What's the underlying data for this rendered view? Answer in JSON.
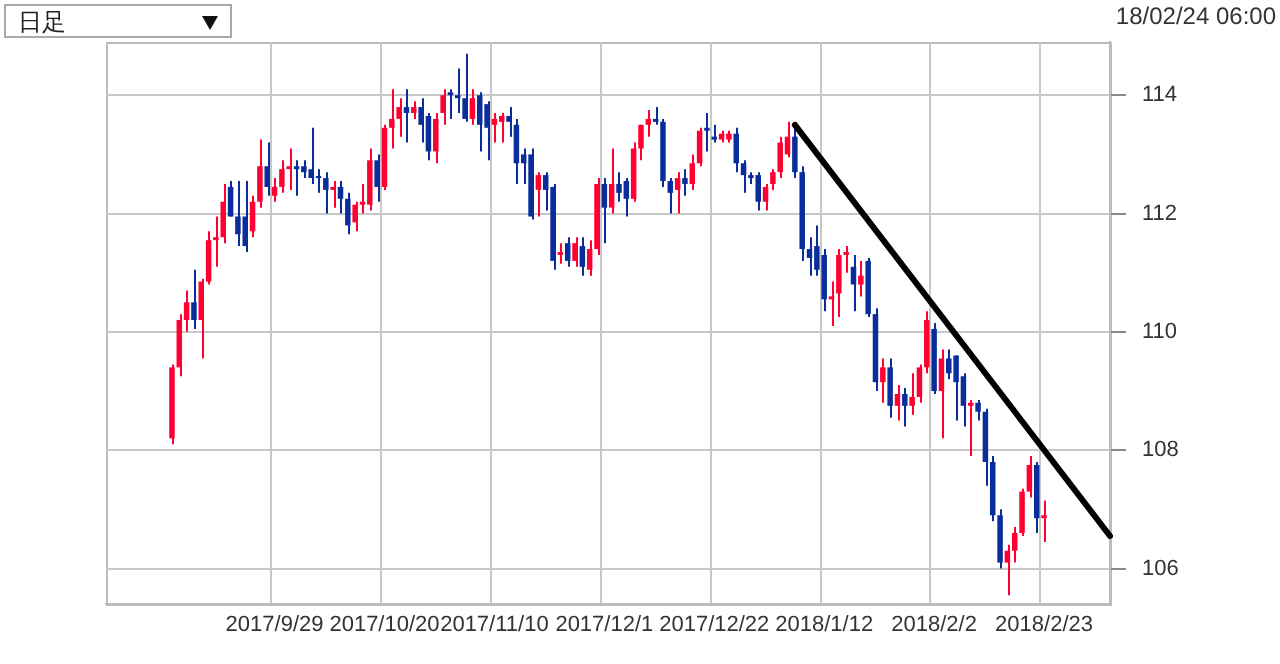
{
  "chart_data": {
    "type": "candlestick",
    "annotations": [
      "日足",
      "18/02/24 06:00"
    ],
    "categories": [
      null,
      null,
      null,
      null,
      null,
      null,
      null,
      null,
      null,
      null,
      null,
      null,
      null,
      null,
      null,
      null,
      null,
      null,
      null,
      null,
      null,
      null,
      null,
      "2017/9/29",
      null,
      null,
      null,
      null,
      null,
      null,
      null,
      null,
      null,
      null,
      null,
      null,
      null,
      null,
      "2017/10/20",
      null,
      null,
      null,
      null,
      null,
      null,
      null,
      null,
      null,
      null,
      null,
      null,
      null,
      null,
      "2017/11/10",
      null,
      null,
      null,
      null,
      null,
      null,
      null,
      null,
      null,
      null,
      null,
      null,
      null,
      null,
      "2017/12/1",
      null,
      null,
      null,
      null,
      null,
      null,
      null,
      null,
      null,
      null,
      null,
      null,
      null,
      null,
      "2017/12/22",
      null,
      null,
      null,
      null,
      null,
      null,
      null,
      null,
      null,
      null,
      null,
      null,
      null,
      null,
      "2018/1/12",
      null,
      null,
      null,
      null,
      null,
      null,
      null,
      null,
      null,
      null,
      null,
      null,
      null,
      null,
      "2018/2/2",
      null,
      null,
      null,
      null,
      null,
      null,
      null,
      null,
      null,
      null,
      null,
      null,
      null,
      null,
      "2018/2/23",
      null,
      null,
      null,
      null,
      null,
      null,
      null,
      null,
      null
    ],
    "ylim": [
      105.4,
      114.9
    ],
    "yticks": [
      106,
      108,
      110,
      112,
      114
    ],
    "grid": true,
    "series": [
      {
        "type": "candlestick",
        "ohlc": [
          null,
          null,
          null,
          null,
          null,
          null,
          null,
          null,
          null,
          [
            108.2,
            109.45,
            108.1,
            109.4
          ],
          [
            109.4,
            110.3,
            109.25,
            110.2
          ],
          [
            110.2,
            110.7,
            110.0,
            110.5
          ],
          [
            110.5,
            111.05,
            110.05,
            110.2
          ],
          [
            110.2,
            110.9,
            109.55,
            110.85
          ],
          [
            110.85,
            111.7,
            110.8,
            111.55
          ],
          [
            111.55,
            111.95,
            111.1,
            111.6
          ],
          [
            111.6,
            112.5,
            111.5,
            112.2
          ],
          [
            112.45,
            112.55,
            111.95,
            111.95
          ],
          [
            111.95,
            112.55,
            111.45,
            111.65
          ],
          [
            111.95,
            112.55,
            111.35,
            111.45
          ],
          [
            111.7,
            112.3,
            111.6,
            112.2
          ],
          [
            112.2,
            113.25,
            112.1,
            112.8
          ],
          [
            112.8,
            113.2,
            112.3,
            112.45
          ],
          [
            112.3,
            112.6,
            112.2,
            112.45
          ],
          [
            112.45,
            112.9,
            112.35,
            112.75
          ],
          [
            112.75,
            113.1,
            112.4,
            112.8
          ],
          [
            112.8,
            112.9,
            112.3,
            112.75
          ],
          [
            112.8,
            112.9,
            112.6,
            112.7
          ],
          [
            112.75,
            113.45,
            112.5,
            112.6
          ],
          [
            112.6,
            112.75,
            112.35,
            112.6
          ],
          [
            112.6,
            112.7,
            112.0,
            112.4
          ],
          [
            112.4,
            112.55,
            112.1,
            112.45
          ],
          [
            112.45,
            112.55,
            112.0,
            112.25
          ],
          [
            112.25,
            112.35,
            111.65,
            111.8
          ],
          [
            111.85,
            112.2,
            111.7,
            112.15
          ],
          [
            112.15,
            112.5,
            112.0,
            112.2
          ],
          [
            112.15,
            113.1,
            112.05,
            112.9
          ],
          [
            112.9,
            113.0,
            112.2,
            112.45
          ],
          [
            112.45,
            113.5,
            112.4,
            113.45
          ],
          [
            113.45,
            114.1,
            113.1,
            113.6
          ],
          [
            113.6,
            113.95,
            113.3,
            113.8
          ],
          [
            113.8,
            114.1,
            113.2,
            113.7
          ],
          [
            113.7,
            113.9,
            113.6,
            113.8
          ],
          [
            113.8,
            113.95,
            113.2,
            113.5
          ],
          [
            113.65,
            113.7,
            112.9,
            113.05
          ],
          [
            113.05,
            113.7,
            112.85,
            113.6
          ],
          [
            113.7,
            114.1,
            113.5,
            114.0
          ],
          [
            114.05,
            114.1,
            113.6,
            114.0
          ],
          [
            114.0,
            114.45,
            113.7,
            113.95
          ],
          [
            113.95,
            114.7,
            113.55,
            113.6
          ],
          [
            113.6,
            114.1,
            113.5,
            113.95
          ],
          [
            114.0,
            114.05,
            113.05,
            113.5
          ],
          [
            113.85,
            113.9,
            112.9,
            113.45
          ],
          [
            113.5,
            113.7,
            113.2,
            113.6
          ],
          [
            113.55,
            113.7,
            113.2,
            113.65
          ],
          [
            113.65,
            113.8,
            113.3,
            113.55
          ],
          [
            113.5,
            113.6,
            112.5,
            112.85
          ],
          [
            113.0,
            113.1,
            112.5,
            112.85
          ],
          [
            113.0,
            113.1,
            111.9,
            111.95
          ],
          [
            112.4,
            112.7,
            111.95,
            112.65
          ],
          [
            112.65,
            112.7,
            112.05,
            112.4
          ],
          [
            112.45,
            112.5,
            111.05,
            111.2
          ],
          [
            111.3,
            111.5,
            111.15,
            111.35
          ],
          [
            111.5,
            111.6,
            111.1,
            111.2
          ],
          [
            111.2,
            111.6,
            111.1,
            111.5
          ],
          [
            111.45,
            111.6,
            110.95,
            111.1
          ],
          [
            111.05,
            111.55,
            110.95,
            111.4
          ],
          [
            111.4,
            112.6,
            111.3,
            112.5
          ],
          [
            112.5,
            112.6,
            111.5,
            112.1
          ],
          [
            112.1,
            113.1,
            112.0,
            112.5
          ],
          [
            112.5,
            112.7,
            112.2,
            112.35
          ],
          [
            112.55,
            112.6,
            111.95,
            112.25
          ],
          [
            112.25,
            113.2,
            112.2,
            113.1
          ],
          [
            113.1,
            113.5,
            112.9,
            113.5
          ],
          [
            113.5,
            113.75,
            113.3,
            113.6
          ],
          [
            113.6,
            113.8,
            113.5,
            113.55
          ],
          [
            113.55,
            113.6,
            112.45,
            112.55
          ],
          [
            112.55,
            112.6,
            112.0,
            112.35
          ],
          [
            112.4,
            112.7,
            112.0,
            112.6
          ],
          [
            112.6,
            112.75,
            112.3,
            112.5
          ],
          [
            112.5,
            113.0,
            112.4,
            112.85
          ],
          [
            112.85,
            113.45,
            112.8,
            113.4
          ],
          [
            113.45,
            113.7,
            113.05,
            113.4
          ],
          [
            113.3,
            113.5,
            113.2,
            113.25
          ],
          [
            113.25,
            113.4,
            113.2,
            113.35
          ],
          [
            113.25,
            113.4,
            113.2,
            113.35
          ],
          [
            113.35,
            113.45,
            112.7,
            112.85
          ],
          [
            112.85,
            112.9,
            112.35,
            112.65
          ],
          [
            112.65,
            112.7,
            112.5,
            112.6
          ],
          [
            112.65,
            112.7,
            112.05,
            112.2
          ],
          [
            112.2,
            112.5,
            112.05,
            112.45
          ],
          [
            112.5,
            112.75,
            112.4,
            112.7
          ],
          [
            112.7,
            113.3,
            112.6,
            113.2
          ],
          [
            113.0,
            113.55,
            112.95,
            113.3
          ],
          [
            113.3,
            113.45,
            112.6,
            112.7
          ],
          [
            112.7,
            112.8,
            111.2,
            111.4
          ],
          [
            111.4,
            111.6,
            110.95,
            111.25
          ],
          [
            111.45,
            111.8,
            110.95,
            111.05
          ],
          [
            111.3,
            111.4,
            110.35,
            110.55
          ],
          [
            110.55,
            110.85,
            110.1,
            110.6
          ],
          [
            110.65,
            111.4,
            110.25,
            111.3
          ],
          [
            111.3,
            111.45,
            111.0,
            111.35
          ],
          [
            111.1,
            111.3,
            110.35,
            110.8
          ],
          [
            110.8,
            111.2,
            110.6,
            110.95
          ],
          [
            111.2,
            111.25,
            110.25,
            110.3
          ],
          [
            110.3,
            110.4,
            109.0,
            109.15
          ],
          [
            109.15,
            109.55,
            108.8,
            109.4
          ],
          [
            109.4,
            109.55,
            108.55,
            108.75
          ],
          [
            108.75,
            109.1,
            108.5,
            108.95
          ],
          [
            108.95,
            109.05,
            108.4,
            108.75
          ],
          [
            108.75,
            109.3,
            108.6,
            108.9
          ],
          [
            108.9,
            109.45,
            108.8,
            109.4
          ],
          [
            109.4,
            110.35,
            109.3,
            110.2
          ],
          [
            110.05,
            110.15,
            108.95,
            109.0
          ],
          [
            109.0,
            109.7,
            108.2,
            109.55
          ],
          [
            109.55,
            109.7,
            109.2,
            109.3
          ],
          [
            109.6,
            109.6,
            108.5,
            109.15
          ],
          [
            109.25,
            109.3,
            108.4,
            108.75
          ],
          [
            108.75,
            108.85,
            107.9,
            108.8
          ],
          [
            108.8,
            108.85,
            108.5,
            108.65
          ],
          [
            108.65,
            108.7,
            107.4,
            107.8
          ],
          [
            107.8,
            107.9,
            106.8,
            106.9
          ],
          [
            106.9,
            107.0,
            106.0,
            106.1
          ],
          [
            106.1,
            106.4,
            105.55,
            106.3
          ],
          [
            106.3,
            106.7,
            106.1,
            106.6
          ],
          [
            106.6,
            107.35,
            106.55,
            107.3
          ],
          [
            107.3,
            107.9,
            107.2,
            107.75
          ],
          [
            107.75,
            107.8,
            106.6,
            106.85
          ],
          [
            106.85,
            107.15,
            106.45,
            106.9
          ],
          null,
          null,
          null,
          null,
          null,
          null,
          null,
          null,
          null
        ],
        "colors": [
          null,
          null,
          null,
          null,
          null,
          null,
          null,
          null,
          null,
          "#ff0033",
          "#ff0033",
          "#ff0033",
          "#0a2d9c",
          "#ff0033",
          "#ff0033",
          "#ff0033",
          "#ff0033",
          "#0a2d9c",
          "#0a2d9c",
          "#0a2d9c",
          "#ff0033",
          "#ff0033",
          "#0a2d9c",
          "#ff0033",
          "#ff0033",
          "#ff0033",
          "#0a2d9c",
          "#0a2d9c",
          "#0a2d9c",
          "#0a2d9c",
          "#0a2d9c",
          "#ff0033",
          "#0a2d9c",
          "#0a2d9c",
          "#ff0033",
          "#ff0033",
          "#ff0033",
          "#0a2d9c",
          "#ff0033",
          "#ff0033",
          "#ff0033",
          "#0a2d9c",
          "#ff0033",
          "#0a2d9c",
          "#0a2d9c",
          "#ff0033",
          "#ff0033",
          "#0a2d9c",
          "#0a2d9c",
          "#0a2d9c",
          "#ff0033",
          "#0a2d9c",
          "#0a2d9c",
          "#ff0033",
          "#ff0033",
          "#0a2d9c",
          "#0a2d9c",
          "#0a2d9c",
          "#0a2d9c",
          "#ff0033",
          "#0a2d9c",
          "#0a2d9c",
          "#ff0033",
          "#0a2d9c",
          "#ff0033",
          "#0a2d9c",
          "#ff0033",
          "#ff0033",
          "#0a2d9c",
          "#ff0033",
          "#0a2d9c",
          "#0a2d9c",
          "#ff0033",
          "#ff0033",
          "#ff0033",
          "#0a2d9c",
          "#0a2d9c",
          "#0a2d9c",
          "#ff0033",
          "#0a2d9c",
          "#ff0033",
          "#ff0033",
          "#0a2d9c",
          "#0a2d9c",
          "#ff0033",
          "#ff0033",
          "#0a2d9c",
          "#0a2d9c",
          "#0a2d9c",
          "#0a2d9c",
          "#ff0033",
          "#ff0033",
          "#ff0033",
          "#ff0033",
          "#0a2d9c",
          "#0a2d9c",
          "#0a2d9c",
          "#0a2d9c",
          "#0a2d9c",
          "#ff0033",
          "#ff0033",
          "#ff0033",
          "#0a2d9c",
          "#ff0033",
          "#0a2d9c",
          "#0a2d9c",
          "#ff0033",
          "#0a2d9c",
          "#ff0033",
          "#0a2d9c",
          "#ff0033",
          "#ff0033",
          "#ff0033",
          "#0a2d9c",
          "#ff0033",
          "#0a2d9c",
          "#0a2d9c",
          "#0a2d9c",
          "#ff0033",
          "#0a2d9c",
          "#0a2d9c",
          "#0a2d9c",
          "#0a2d9c",
          "#ff0033",
          "#ff0033",
          "#ff0033",
          "#ff0033",
          "#0a2d9c",
          "#ff0033",
          null,
          null,
          null,
          null,
          null,
          null,
          null,
          null,
          null
        ]
      },
      {
        "type": "line",
        "color": "#000000",
        "values": [
          null,
          null,
          null,
          null,
          null,
          null,
          null,
          null,
          null,
          null,
          null,
          null,
          null,
          null,
          null,
          null,
          null,
          null,
          null,
          null,
          null,
          null,
          null,
          null,
          null,
          null,
          null,
          null,
          null,
          null,
          null,
          null,
          null,
          null,
          null,
          null,
          null,
          null,
          null,
          null,
          null,
          null,
          null,
          null,
          null,
          null,
          null,
          null,
          null,
          null,
          null,
          null,
          null,
          null,
          null,
          null,
          null,
          null,
          null,
          null,
          null,
          null,
          null,
          null,
          null,
          null,
          null,
          null,
          null,
          null,
          null,
          null,
          null,
          null,
          null,
          null,
          null,
          null,
          null,
          null,
          null,
          null,
          null,
          null,
          null,
          null,
          null,
          null,
          null,
          null,
          null,
          null,
          null,
          null,
          113.5,
          null,
          null,
          null,
          null,
          null,
          null,
          null,
          null,
          null,
          null,
          null,
          null,
          null,
          null,
          null,
          null,
          null,
          null,
          null,
          null,
          null,
          null,
          null,
          null,
          null,
          null,
          null,
          null,
          null,
          null,
          null,
          null,
          null,
          null,
          null,
          null,
          null,
          null,
          null,
          null,
          null,
          null,
          106.55
        ]
      }
    ]
  }
}
